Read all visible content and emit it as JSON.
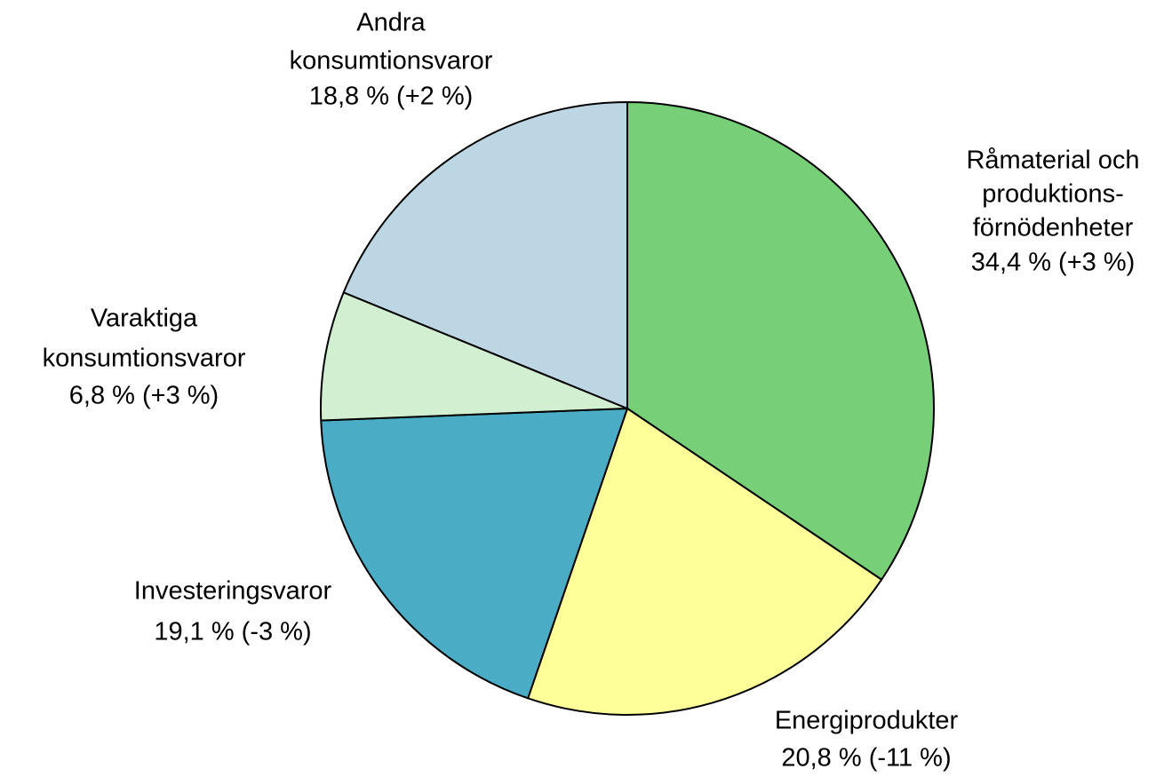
{
  "chart_data": {
    "type": "pie",
    "categories": [
      [
        "Råmaterial och",
        "produktions-",
        "förnödenheter"
      ],
      [
        "Energiprodukter"
      ],
      [
        "Investeringsvaror"
      ],
      [
        "Varaktiga",
        "konsumtionsvaror"
      ],
      [
        "Andra",
        "konsumtionsvaror"
      ]
    ],
    "values": [
      34.4,
      20.8,
      19.1,
      6.8,
      18.8
    ],
    "value_labels": [
      "34,4 % (+3 %)",
      "20,8 % (-11 %)",
      "19,1 % (-3 %)",
      "6,8 % (+3 %)",
      "18,8 % (+2 %)"
    ],
    "colors": [
      "#77d077",
      "#ffff99",
      "#4bacc6",
      "#d2efd2",
      "#bcd7e3"
    ]
  }
}
